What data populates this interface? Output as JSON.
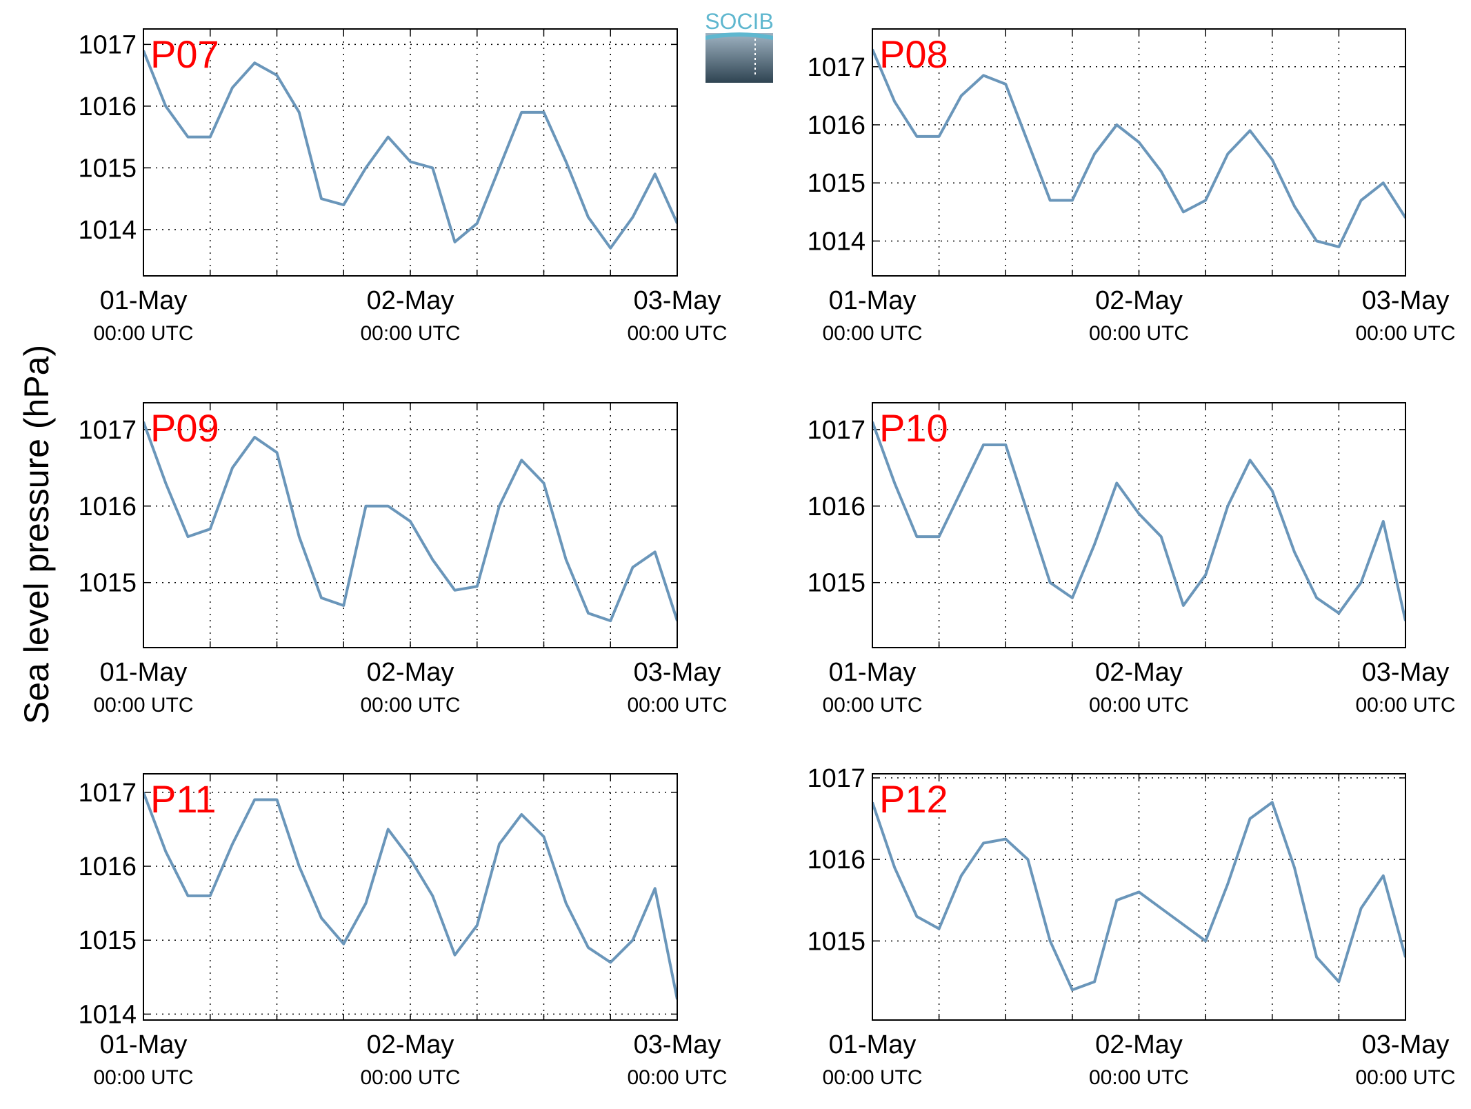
{
  "ylabel": "Sea level pressure (hPa)",
  "logo": "SOCIB",
  "chart_data": [
    {
      "type": "line",
      "title": "P07",
      "x": [
        0,
        2,
        4,
        6,
        8,
        10,
        12,
        14,
        16,
        18,
        20,
        22,
        24,
        26,
        28,
        30,
        32,
        34,
        36,
        38,
        40,
        42,
        44,
        46,
        48
      ],
      "series": [
        {
          "color": "#6a96ba",
          "values": [
            1016.9,
            1016.0,
            1015.5,
            1015.5,
            1016.3,
            1016.7,
            1016.5,
            1015.9,
            1014.5,
            1014.4,
            1015.0,
            1015.5,
            1015.1,
            1015.0,
            1013.8,
            1014.1,
            1015.0,
            1015.9,
            1015.9,
            1015.1,
            1014.2,
            1013.7,
            1014.2,
            1014.9,
            1014.1
          ]
        }
      ],
      "xlim": [
        0,
        48
      ],
      "xticks": [
        {
          "value": 0,
          "label": [
            "01-May",
            "00:00 UTC"
          ]
        },
        {
          "value": 24,
          "label": [
            "02-May",
            "00:00 UTC"
          ]
        },
        {
          "value": 48,
          "label": [
            "03-May",
            "00:00 UTC"
          ]
        }
      ],
      "xminor": [
        6,
        12,
        18,
        30,
        36,
        42
      ],
      "ylim": [
        1013.25,
        1017.25
      ],
      "yticks": [
        1014,
        1015,
        1016,
        1017
      ],
      "grid": true
    },
    {
      "type": "line",
      "title": "P08",
      "x": [
        0,
        2,
        4,
        6,
        8,
        10,
        12,
        14,
        16,
        18,
        20,
        22,
        24,
        26,
        28,
        30,
        32,
        34,
        36,
        38,
        40,
        42,
        44,
        46,
        48
      ],
      "series": [
        {
          "color": "#6a96ba",
          "values": [
            1017.3,
            1016.4,
            1015.8,
            1015.8,
            1016.5,
            1016.85,
            1016.7,
            1015.7,
            1014.7,
            1014.7,
            1015.5,
            1016.0,
            1015.7,
            1015.2,
            1014.5,
            1014.7,
            1015.5,
            1015.9,
            1015.4,
            1014.6,
            1014.0,
            1013.9,
            1014.7,
            1015.0,
            1014.4
          ]
        }
      ],
      "xlim": [
        0,
        48
      ],
      "xticks": [
        {
          "value": 0,
          "label": [
            "01-May",
            "00:00 UTC"
          ]
        },
        {
          "value": 24,
          "label": [
            "02-May",
            "00:00 UTC"
          ]
        },
        {
          "value": 48,
          "label": [
            "03-May",
            "00:00 UTC"
          ]
        }
      ],
      "xminor": [
        6,
        12,
        18,
        30,
        36,
        42
      ],
      "ylim": [
        1013.4,
        1017.65
      ],
      "yticks": [
        1014,
        1015,
        1016,
        1017
      ],
      "grid": true
    },
    {
      "type": "line",
      "title": "P09",
      "x": [
        0,
        2,
        4,
        6,
        8,
        10,
        12,
        14,
        16,
        18,
        20,
        22,
        24,
        26,
        28,
        30,
        32,
        34,
        36,
        38,
        40,
        42,
        44,
        46,
        48
      ],
      "series": [
        {
          "color": "#6a96ba",
          "values": [
            1017.1,
            1016.3,
            1015.6,
            1015.7,
            1016.5,
            1016.9,
            1016.7,
            1015.6,
            1014.8,
            1014.7,
            1016.0,
            1016.0,
            1015.8,
            1015.3,
            1014.9,
            1014.95,
            1016.0,
            1016.6,
            1016.3,
            1015.3,
            1014.6,
            1014.5,
            1015.2,
            1015.4,
            1014.5
          ]
        }
      ],
      "xlim": [
        0,
        48
      ],
      "xticks": [
        {
          "value": 0,
          "label": [
            "01-May",
            "00:00 UTC"
          ]
        },
        {
          "value": 24,
          "label": [
            "02-May",
            "00:00 UTC"
          ]
        },
        {
          "value": 48,
          "label": [
            "03-May",
            "00:00 UTC"
          ]
        }
      ],
      "xminor": [
        6,
        12,
        18,
        30,
        36,
        42
      ],
      "ylim": [
        1014.15,
        1017.35
      ],
      "yticks": [
        1015,
        1016,
        1017
      ],
      "grid": true
    },
    {
      "type": "line",
      "title": "P10",
      "x": [
        0,
        2,
        4,
        6,
        8,
        10,
        12,
        14,
        16,
        18,
        20,
        22,
        24,
        26,
        28,
        30,
        32,
        34,
        36,
        38,
        40,
        42,
        44,
        46,
        48
      ],
      "series": [
        {
          "color": "#6a96ba",
          "values": [
            1017.1,
            1016.3,
            1015.6,
            1015.6,
            1016.2,
            1016.8,
            1016.8,
            1015.9,
            1015.0,
            1014.8,
            1015.5,
            1016.3,
            1015.9,
            1015.6,
            1014.7,
            1015.1,
            1016.0,
            1016.6,
            1016.2,
            1015.4,
            1014.8,
            1014.6,
            1015.0,
            1015.8,
            1014.5
          ]
        }
      ],
      "xlim": [
        0,
        48
      ],
      "xticks": [
        {
          "value": 0,
          "label": [
            "01-May",
            "00:00 UTC"
          ]
        },
        {
          "value": 24,
          "label": [
            "02-May",
            "00:00 UTC"
          ]
        },
        {
          "value": 48,
          "label": [
            "03-May",
            "00:00 UTC"
          ]
        }
      ],
      "xminor": [
        6,
        12,
        18,
        30,
        36,
        42
      ],
      "ylim": [
        1014.15,
        1017.35
      ],
      "yticks": [
        1015,
        1016,
        1017
      ],
      "grid": true
    },
    {
      "type": "line",
      "title": "P11",
      "x": [
        0,
        2,
        4,
        6,
        8,
        10,
        12,
        14,
        16,
        18,
        20,
        22,
        24,
        26,
        28,
        30,
        32,
        34,
        36,
        38,
        40,
        42,
        44,
        46,
        48
      ],
      "series": [
        {
          "color": "#6a96ba",
          "values": [
            1017.0,
            1016.2,
            1015.6,
            1015.6,
            1016.3,
            1016.9,
            1016.9,
            1016.0,
            1015.3,
            1014.95,
            1015.5,
            1016.5,
            1016.1,
            1015.6,
            1014.8,
            1015.2,
            1016.3,
            1016.7,
            1016.4,
            1015.5,
            1014.9,
            1014.7,
            1015.0,
            1015.7,
            1014.2
          ]
        }
      ],
      "xlim": [
        0,
        48
      ],
      "xticks": [
        {
          "value": 0,
          "label": [
            "01-May",
            "00:00 UTC"
          ]
        },
        {
          "value": 24,
          "label": [
            "02-May",
            "00:00 UTC"
          ]
        },
        {
          "value": 48,
          "label": [
            "03-May",
            "00:00 UTC"
          ]
        }
      ],
      "xminor": [
        6,
        12,
        18,
        30,
        36,
        42
      ],
      "ylim": [
        1013.92,
        1017.25
      ],
      "yticks": [
        1014,
        1015,
        1016,
        1017
      ],
      "grid": true
    },
    {
      "type": "line",
      "title": "P12",
      "x": [
        0,
        2,
        4,
        6,
        8,
        10,
        12,
        14,
        16,
        18,
        20,
        22,
        24,
        26,
        28,
        30,
        32,
        34,
        36,
        38,
        40,
        42,
        44,
        46,
        48
      ],
      "series": [
        {
          "color": "#6a96ba",
          "values": [
            1016.7,
            1015.9,
            1015.3,
            1015.15,
            1015.8,
            1016.2,
            1016.25,
            1016.0,
            1015.0,
            1014.4,
            1014.5,
            1015.5,
            1015.6,
            1015.4,
            1015.2,
            1015.0,
            1015.7,
            1016.5,
            1016.7,
            1015.9,
            1014.8,
            1014.5,
            1015.4,
            1015.8,
            1014.8
          ]
        }
      ],
      "xlim": [
        0,
        48
      ],
      "xticks": [
        {
          "value": 0,
          "label": [
            "01-May",
            "00:00 UTC"
          ]
        },
        {
          "value": 24,
          "label": [
            "02-May",
            "00:00 UTC"
          ]
        },
        {
          "value": 48,
          "label": [
            "03-May",
            "00:00 UTC"
          ]
        }
      ],
      "xminor": [
        6,
        12,
        18,
        30,
        36,
        42
      ],
      "ylim": [
        1014.03,
        1017.05
      ],
      "yticks": [
        1015,
        1016,
        1017
      ],
      "grid": true
    }
  ]
}
